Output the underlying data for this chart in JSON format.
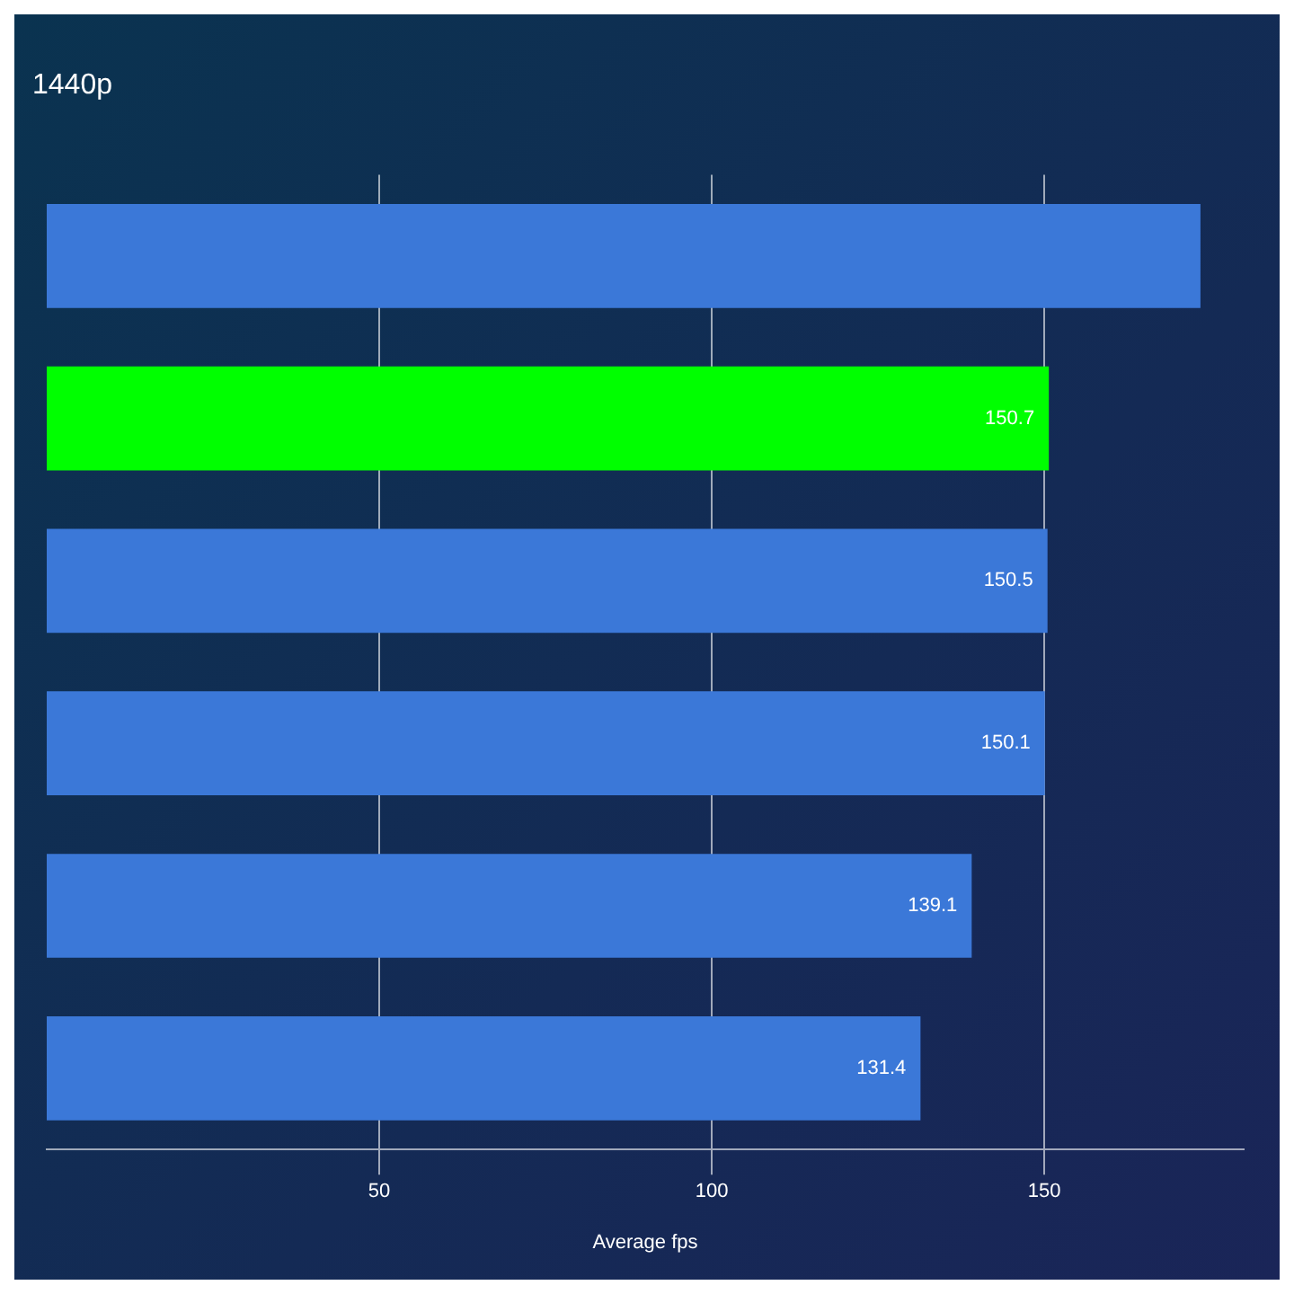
{
  "chart_data": {
    "type": "bar",
    "orientation": "horizontal",
    "title": "1440p",
    "xlabel": "Average fps",
    "categories": [
      null,
      null,
      null,
      null,
      null,
      null
    ],
    "values": [
      173.5,
      150.7,
      150.5,
      150.1,
      139.1,
      131.4
    ],
    "colors": [
      "#3b78d8",
      "#00ff00",
      "#3b78d8",
      "#3b78d8",
      "#3b78d8",
      "#3b78d8"
    ],
    "value_labels": [
      null,
      "150.7",
      "150.5",
      "150.1",
      "139.1",
      "131.4"
    ],
    "xlim": [
      0,
      180
    ],
    "xticks": [
      50,
      100,
      150
    ],
    "grid": "x",
    "legend": false
  }
}
